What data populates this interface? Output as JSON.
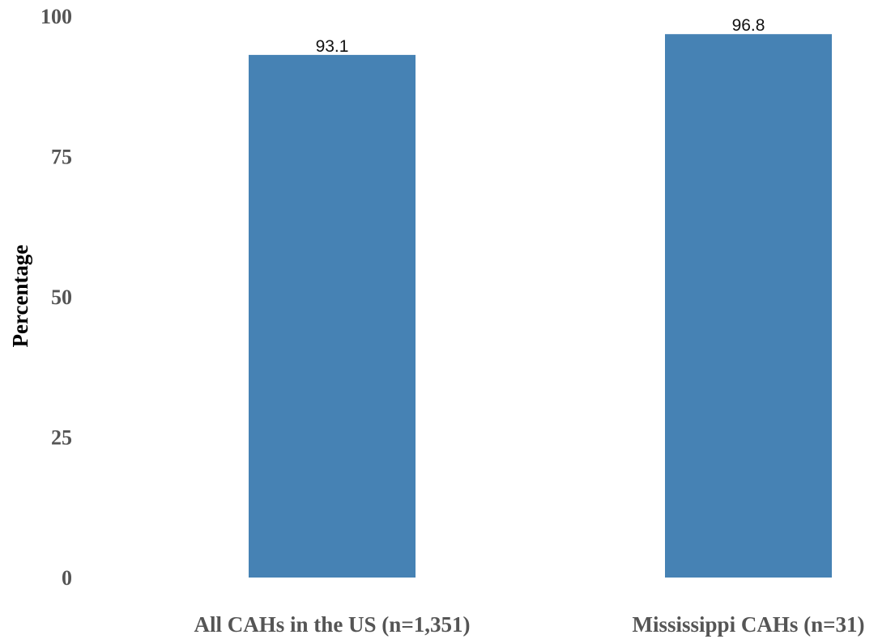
{
  "chart_data": {
    "type": "bar",
    "categories": [
      "All CAHs in the US (n=1,351)",
      "Mississippi CAHs (n=31)"
    ],
    "values": [
      93.1,
      96.8
    ],
    "data_labels": [
      "93.1",
      "96.8"
    ],
    "title": "",
    "xlabel": "",
    "ylabel": "Percentage",
    "ylim": [
      0,
      100
    ],
    "yticks": [
      0,
      25,
      50,
      75,
      100
    ],
    "ytick_labels": [
      "0",
      "25",
      "50",
      "75",
      "100"
    ],
    "grid": false,
    "legend": "none",
    "bar_color": "#4682b4"
  }
}
